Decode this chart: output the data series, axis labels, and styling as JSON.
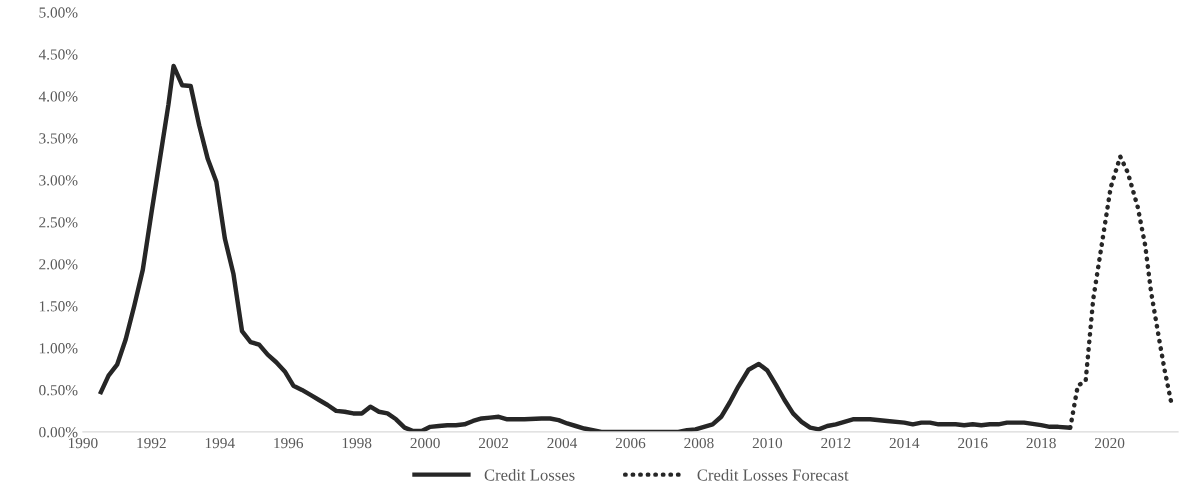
{
  "chart_data": {
    "type": "line",
    "xlim": [
      1990,
      2022
    ],
    "xticks": [
      1990,
      1992,
      1994,
      1996,
      1998,
      2000,
      2002,
      2004,
      2006,
      2008,
      2010,
      2012,
      2014,
      2016,
      2018,
      2020
    ],
    "ylim": [
      0,
      5
    ],
    "yticks": [
      {
        "value": 0,
        "label": "0.00%"
      },
      {
        "value": 0.5,
        "label": "0.50%"
      },
      {
        "value": 1,
        "label": "1.00%"
      },
      {
        "value": 1.5,
        "label": "1.50%"
      },
      {
        "value": 2,
        "label": "2.00%"
      },
      {
        "value": 2.5,
        "label": "2.50%"
      },
      {
        "value": 3,
        "label": "3.00%"
      },
      {
        "value": 3.5,
        "label": "3.50%"
      },
      {
        "value": 4,
        "label": "4.00%"
      },
      {
        "value": 4.5,
        "label": "4.50%"
      },
      {
        "value": 5,
        "label": "5.00%"
      }
    ],
    "grid": false,
    "legend": "bottom",
    "series": [
      {
        "name": "Credit Losses",
        "color": "#262626",
        "line_style": "solid",
        "x": [
          1990.5,
          1990.75,
          1991.0,
          1991.25,
          1991.5,
          1991.75,
          1992.0,
          1992.25,
          1992.5,
          1992.65,
          1992.9,
          1993.15,
          1993.4,
          1993.65,
          1993.9,
          1994.15,
          1994.4,
          1994.65,
          1994.9,
          1995.15,
          1995.4,
          1995.65,
          1995.9,
          1996.15,
          1996.4,
          1996.65,
          1996.9,
          1997.15,
          1997.4,
          1997.65,
          1997.9,
          1998.15,
          1998.4,
          1998.65,
          1998.9,
          1999.15,
          1999.4,
          1999.65,
          1999.9,
          2000.15,
          2000.4,
          2000.65,
          2000.9,
          2001.15,
          2001.4,
          2001.65,
          2001.9,
          2002.15,
          2002.4,
          2002.65,
          2002.9,
          2003.4,
          2003.65,
          2003.9,
          2004.15,
          2004.4,
          2004.65,
          2004.9,
          2005.15,
          2007.4,
          2007.65,
          2007.9,
          2008.15,
          2008.4,
          2008.65,
          2008.9,
          2009.15,
          2009.45,
          2009.75,
          2010.0,
          2010.25,
          2010.5,
          2010.75,
          2011.0,
          2011.25,
          2011.5,
          2011.75,
          2012.0,
          2012.25,
          2012.5,
          2012.75,
          2013.0,
          2013.5,
          2014.0,
          2014.25,
          2014.5,
          2014.75,
          2015.0,
          2015.5,
          2015.75,
          2016.0,
          2016.25,
          2016.5,
          2016.75,
          2017.0,
          2017.5,
          2018.0,
          2018.25,
          2018.5,
          2018.85
        ],
        "values": [
          0.45,
          0.67,
          0.8,
          1.1,
          1.5,
          1.93,
          2.6,
          3.25,
          3.9,
          4.36,
          4.13,
          4.12,
          3.65,
          3.25,
          2.98,
          2.3,
          1.88,
          1.2,
          1.07,
          1.04,
          0.92,
          0.83,
          0.72,
          0.55,
          0.5,
          0.44,
          0.38,
          0.32,
          0.25,
          0.24,
          0.22,
          0.22,
          0.3,
          0.24,
          0.22,
          0.15,
          0.05,
          0.01,
          0.01,
          0.06,
          0.07,
          0.08,
          0.08,
          0.09,
          0.13,
          0.16,
          0.17,
          0.18,
          0.15,
          0.15,
          0.15,
          0.16,
          0.16,
          0.14,
          0.1,
          0.07,
          0.04,
          0.02,
          0.0,
          0.0,
          0.02,
          0.03,
          0.06,
          0.09,
          0.18,
          0.35,
          0.54,
          0.74,
          0.81,
          0.73,
          0.56,
          0.38,
          0.22,
          0.12,
          0.05,
          0.03,
          0.07,
          0.09,
          0.12,
          0.15,
          0.15,
          0.15,
          0.13,
          0.11,
          0.09,
          0.11,
          0.11,
          0.09,
          0.09,
          0.08,
          0.09,
          0.08,
          0.09,
          0.09,
          0.11,
          0.11,
          0.08,
          0.06,
          0.06,
          0.05
        ]
      },
      {
        "name": "Credit Losses Forecast",
        "color": "#262626",
        "line_style": "dotted",
        "x": [
          2018.85,
          2019.07,
          2019.3,
          2019.52,
          2019.8,
          2020.03,
          2020.31,
          2020.53,
          2020.82,
          2021.04,
          2021.21,
          2021.44,
          2021.6,
          2021.8
        ],
        "values": [
          0.05,
          0.55,
          0.61,
          1.58,
          2.31,
          2.91,
          3.28,
          3.09,
          2.68,
          2.22,
          1.67,
          1.12,
          0.75,
          0.35
        ]
      }
    ]
  }
}
